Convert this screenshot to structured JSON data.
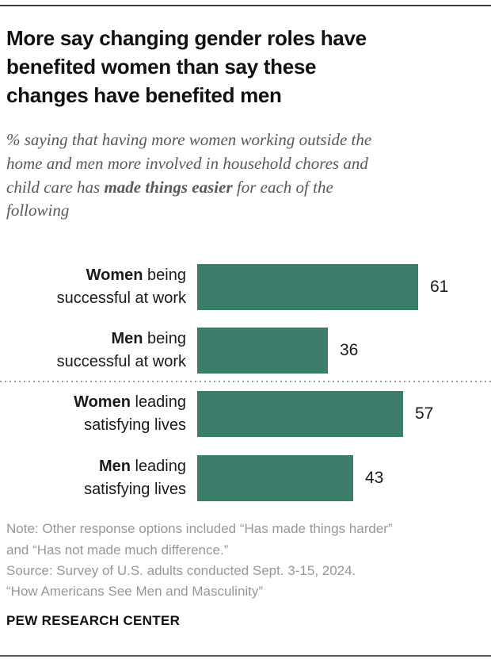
{
  "header": {
    "title_lines": [
      "More say changing gender roles have",
      "benefited women than say these",
      "changes have benefited men"
    ],
    "subtitle_lines": [
      {
        "text": "% saying that having more women working outside the"
      },
      {
        "text": "home and men more involved in household chores and"
      },
      {
        "pre": "child care has ",
        "bold": "made things easier",
        "post": " for each of the"
      },
      {
        "text": "following"
      }
    ]
  },
  "chart_data": {
    "type": "bar",
    "orientation": "horizontal",
    "unit": "%",
    "title": "More say changing gender roles have benefited women than say these changes have benefited men",
    "categories": [
      "Women being successful at work",
      "Men being successful at work",
      "Women leading satisfying lives",
      "Men leading satisfying lives"
    ],
    "values": [
      61,
      36,
      57,
      43
    ],
    "bar_color": "#3b7c6a",
    "xlim": [
      0,
      65
    ],
    "grid": false,
    "value_label_position": "end-of-bar",
    "divider_after_row": 2,
    "rows": [
      {
        "bold": "Women",
        "rest1": " being",
        "line2": "successful at work"
      },
      {
        "bold": "Men",
        "rest1": " being",
        "line2": "successful at work"
      },
      {
        "bold": "Women",
        "rest1": " leading",
        "line2": "satisfying lives"
      },
      {
        "bold": "Men",
        "rest1": " leading",
        "line2": "satisfying lives"
      }
    ]
  },
  "footer": {
    "note_lines": [
      "Note: Other response options included “Has made things harder”",
      "and “Has not made much difference.”"
    ],
    "source": "Source: Survey of U.S. adults conducted Sept. 3-15, 2024.",
    "report_title": "“How Americans See Men and Masculinity”",
    "brand": "PEW RESEARCH CENTER"
  }
}
